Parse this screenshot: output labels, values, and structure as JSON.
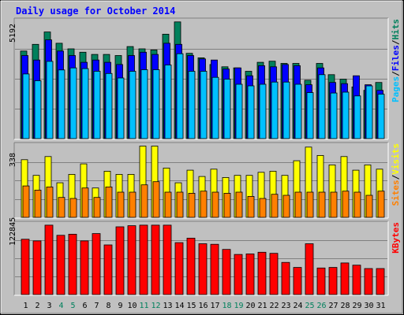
{
  "chart_data": {
    "type": "bar",
    "title": "Daily usage for October 2014",
    "categories": [
      "1",
      "2",
      "3",
      "4",
      "5",
      "6",
      "7",
      "8",
      "9",
      "10",
      "11",
      "12",
      "13",
      "14",
      "15",
      "16",
      "17",
      "18",
      "19",
      "20",
      "21",
      "22",
      "23",
      "24",
      "25",
      "26",
      "27",
      "28",
      "29",
      "30",
      "31"
    ],
    "weekend_days": [
      "4",
      "5",
      "11",
      "12",
      "18",
      "19",
      "25",
      "26"
    ],
    "panels": [
      {
        "name": "hits-files-pages",
        "ymax_label": "5192",
        "ymax": 5192,
        "side_label": [
          "Pages",
          "/",
          "Files",
          "/",
          "Hits"
        ],
        "side_label_colors": [
          "#00c0ff",
          "#000000",
          "#0000ff",
          "#000000",
          "#00805c"
        ],
        "series": [
          {
            "name": "Hits",
            "color": "#00805c",
            "values": [
              3900,
              4200,
              4750,
              4250,
              4000,
              3850,
              3750,
              3750,
              3700,
              4100,
              4000,
              3950,
              4650,
              5200,
              3800,
              3600,
              3300,
              3200,
              3150,
              3000,
              3400,
              3450,
              3350,
              3350,
              2600,
              3350,
              2850,
              2650,
              2300,
              2150,
              2500
            ]
          },
          {
            "name": "Files",
            "color": "#0000ff",
            "values": [
              3700,
              3500,
              4400,
              3900,
              3700,
              3400,
              3500,
              3400,
              3300,
              3700,
              3850,
              3750,
              4250,
              4200,
              3700,
              3550,
              3500,
              3100,
              3150,
              2800,
              3250,
              3200,
              3300,
              3250,
              2400,
              3150,
              2500,
              2450,
              2800,
              2400,
              2150
            ]
          },
          {
            "name": "Pages",
            "color": "#00c0ff",
            "values": [
              2880,
              2580,
              3440,
              3060,
              3150,
              3120,
              3000,
              2900,
              2700,
              3000,
              3070,
              3070,
              3280,
              3780,
              3000,
              3000,
              2730,
              2650,
              2420,
              2350,
              2420,
              2520,
              2520,
              2420,
              2050,
              2850,
              2030,
              2070,
              1900,
              2350,
              1980
            ]
          }
        ]
      },
      {
        "name": "visits-sites",
        "ymax_label": "338",
        "ymax": 338,
        "side_label": [
          "Sites",
          "/",
          "Visits"
        ],
        "side_label_colors": [
          "#ff8000",
          "#000000",
          "#ffff00"
        ],
        "series": [
          {
            "name": "Visits",
            "color": "#ffff00",
            "values": [
              275,
              200,
              290,
              165,
              205,
              255,
              140,
              220,
              205,
              205,
              340,
              340,
              235,
              165,
              225,
              195,
              230,
              190,
              200,
              200,
              215,
              220,
              200,
              270,
              335,
              295,
              250,
              290,
              225,
              250,
              230
            ]
          },
          {
            "name": "Sites",
            "color": "#ff8000",
            "values": [
              150,
              130,
              145,
              95,
              90,
              140,
              95,
              145,
              120,
              120,
              155,
              170,
              120,
              120,
              115,
              125,
              120,
              115,
              120,
              100,
              90,
              110,
              105,
              120,
              120,
              120,
              120,
              125,
              120,
              105,
              125
            ]
          }
        ]
      },
      {
        "name": "kbytes",
        "ymax_label": "122845",
        "ymax": 122845,
        "side_label": [
          "KBytes"
        ],
        "side_label_colors": [
          "#ff0000"
        ],
        "series": [
          {
            "name": "KBytes",
            "color": "#ff0000",
            "values": [
              98000,
              95000,
              123000,
              105000,
              107000,
              95000,
              108000,
              88000,
              120000,
              122000,
              123000,
              123000,
              123000,
              92000,
              100000,
              90000,
              89000,
              80000,
              71000,
              72000,
              75000,
              73000,
              57000,
              48000,
              90000,
              47000,
              48000,
              56000,
              52000,
              46000,
              46000
            ]
          }
        ]
      }
    ]
  }
}
